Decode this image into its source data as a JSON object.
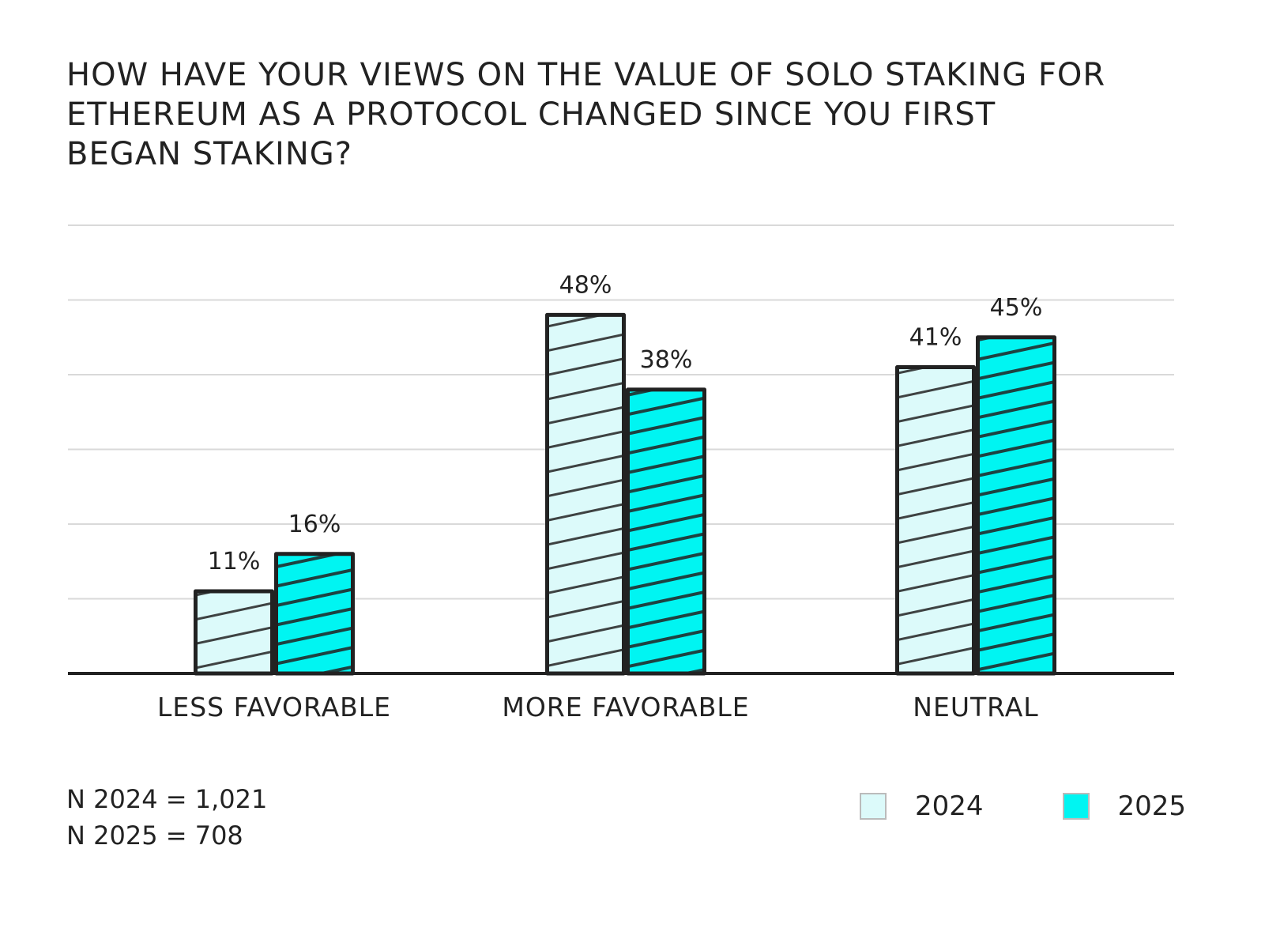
{
  "chart_data": {
    "type": "bar",
    "title_lines": [
      "HOW HAVE YOUR VIEWS ON THE VALUE OF SOLO STAKING FOR",
      "ETHEREUM AS A PROTOCOL CHANGED SINCE YOU FIRST",
      "BEGAN STAKING?"
    ],
    "categories": [
      "LESS FAVORABLE",
      "MORE FAVORABLE",
      "NEUTRAL"
    ],
    "series": [
      {
        "name": "2024",
        "values": [
          11,
          48,
          41
        ],
        "labels": [
          "11%",
          "48%",
          "41%"
        ],
        "color": "#dcfafa"
      },
      {
        "name": "2025",
        "values": [
          16,
          38,
          45
        ],
        "labels": [
          "16%",
          "38%",
          "45%"
        ],
        "color": "#00f5f2"
      }
    ],
    "ylim": [
      0,
      60
    ],
    "grid": true,
    "legend_position": "bottom-right",
    "outline_color": "#222222"
  },
  "notes": {
    "n2024": "N 2024 = 1,021",
    "n2025": "N 2025 = 708"
  }
}
